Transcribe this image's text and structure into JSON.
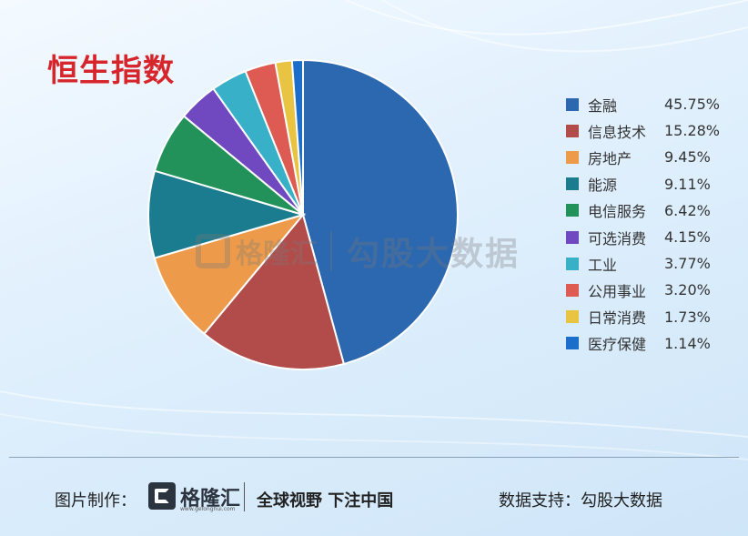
{
  "title": "恒生指数",
  "chart_data": {
    "type": "pie",
    "title": "恒生指数",
    "legend_position": "right",
    "slices": [
      {
        "label": "金融",
        "value": 45.75,
        "display": "45.75%",
        "color": "#2b68b0"
      },
      {
        "label": "信息技术",
        "value": 15.28,
        "display": "15.28%",
        "color": "#b24c4a"
      },
      {
        "label": "房地产",
        "value": 9.45,
        "display": "9.45%",
        "color": "#ed9b4a"
      },
      {
        "label": "能源",
        "value": 9.11,
        "display": "9.11%",
        "color": "#1a7c8e"
      },
      {
        "label": "电信服务",
        "value": 6.42,
        "display": "6.42%",
        "color": "#22925a"
      },
      {
        "label": "可选消费",
        "value": 4.15,
        "display": "4.15%",
        "color": "#7048c0"
      },
      {
        "label": "工业",
        "value": 3.77,
        "display": "3.77%",
        "color": "#37b0c8"
      },
      {
        "label": "公用事业",
        "value": 3.2,
        "display": "3.20%",
        "color": "#dd5b52"
      },
      {
        "label": "日常消费",
        "value": 1.73,
        "display": "1.73%",
        "color": "#e8c442"
      },
      {
        "label": "医疗保健",
        "value": 1.14,
        "display": "1.14%",
        "color": "#1b6ec9"
      }
    ]
  },
  "watermark": {
    "brand": "格隆汇",
    "text": "勾股大数据"
  },
  "footer": {
    "made_by": "图片制作：",
    "brand": "格隆汇",
    "brand_url": "www.gelonghui.com",
    "slogan": "全球视野 下注中国",
    "support": "数据支持：勾股大数据"
  }
}
